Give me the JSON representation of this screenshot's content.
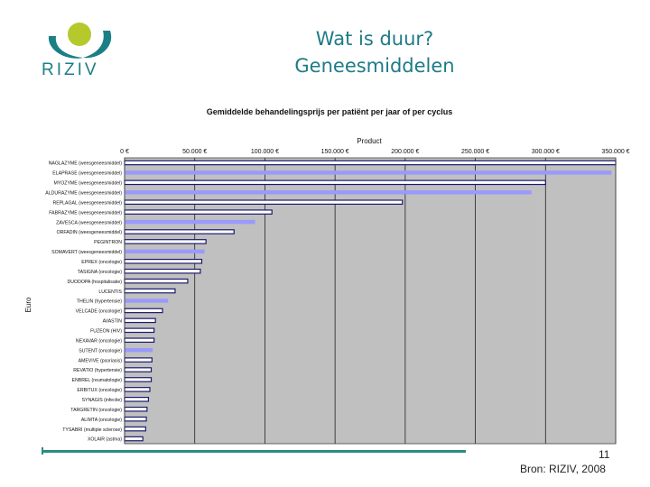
{
  "header": {
    "logo_text": "RIZIV",
    "title_line1": "Wat is duur?",
    "title_line2": "Geneesmiddelen"
  },
  "footer": {
    "page_number": "11",
    "source": "Bron: RIZIV, 2008"
  },
  "colors": {
    "title": "#1e7b86",
    "plot_bg": "#c0c0c0",
    "bar_dark_fill": "#ffffff",
    "bar_dark_edge": "#1a1a6e",
    "bar_light": "#9999ff",
    "logo_green": "#b5c92d",
    "logo_teal": "#1b7f86"
  },
  "chart_data": {
    "type": "bar",
    "orientation": "horizontal",
    "title": "Gemiddelde behandelingsprijs per patiënt per jaar of per cyclus",
    "axis_title_top": "Product",
    "ylabel": "Euro",
    "xlim": [
      0,
      350000
    ],
    "ticks": [
      0,
      50000,
      100000,
      150000,
      200000,
      250000,
      300000,
      350000
    ],
    "tick_labels": [
      "0 €",
      "50.000 €",
      "100.000 €",
      "150.000 €",
      "200.000 €",
      "250.000 €",
      "300.000 €",
      "350.000 €"
    ],
    "bars": [
      {
        "label": "NAGLAZYME (weesgeneesmiddel)",
        "value": 350000,
        "style": "dark"
      },
      {
        "label": "ELAPRASE (weesgeneesmiddel)",
        "value": 347000,
        "style": "light"
      },
      {
        "label": "MYOZYME (weesgeneesmiddel)",
        "value": 300000,
        "style": "dark"
      },
      {
        "label": "ALDURAZYME (weesgeneesmiddel)",
        "value": 290000,
        "style": "light"
      },
      {
        "label": "REPLAGAL (weesgeneesmiddel)",
        "value": 198000,
        "style": "dark"
      },
      {
        "label": "FABRAZYME (weesgeneesmiddel)",
        "value": 105000,
        "style": "dark"
      },
      {
        "label": "ZAVESCA (weesgeneesmiddel)",
        "value": 93000,
        "style": "light"
      },
      {
        "label": "ORFADIN (weesgeneesmiddel)",
        "value": 78000,
        "style": "dark"
      },
      {
        "label": "PEGINTRON",
        "value": 58000,
        "style": "dark"
      },
      {
        "label": "SOMAVERT (weesgeneesmiddel)",
        "value": 57000,
        "style": "light"
      },
      {
        "label": "EPREX (oncologie)",
        "value": 55000,
        "style": "dark"
      },
      {
        "label": "TASIGNA (oncologie)",
        "value": 54000,
        "style": "dark"
      },
      {
        "label": "DUODOPA (hospitalisatie)",
        "value": 45000,
        "style": "dark"
      },
      {
        "label": "LUCENTIS",
        "value": 36000,
        "style": "dark"
      },
      {
        "label": "THELIN (hypertensie)",
        "value": 31000,
        "style": "light"
      },
      {
        "label": "VELCADE (oncologie)",
        "value": 27000,
        "style": "dark"
      },
      {
        "label": "AVASTIN",
        "value": 22000,
        "style": "dark"
      },
      {
        "label": "FUZEON (HIV)",
        "value": 21000,
        "style": "dark"
      },
      {
        "label": "NEXAVAR (oncologie)",
        "value": 21000,
        "style": "dark"
      },
      {
        "label": "SUTENT (oncologie)",
        "value": 20000,
        "style": "light"
      },
      {
        "label": "AMEVIVE (psoriasis)",
        "value": 19500,
        "style": "dark"
      },
      {
        "label": "REVATIO (hypertensie)",
        "value": 19000,
        "style": "dark"
      },
      {
        "label": "ENBREL (reumatologie)",
        "value": 19000,
        "style": "dark"
      },
      {
        "label": "ERBITUX (oncologie)",
        "value": 18000,
        "style": "dark"
      },
      {
        "label": "SYNAGIS (infectie)",
        "value": 17000,
        "style": "dark"
      },
      {
        "label": "TARGRETIN (oncologie)",
        "value": 16000,
        "style": "dark"
      },
      {
        "label": "ALIMTA (oncologie)",
        "value": 15500,
        "style": "dark"
      },
      {
        "label": "TYSABRI (multiple sclerose)",
        "value": 15000,
        "style": "dark"
      },
      {
        "label": "XOLAIR (astma)",
        "value": 13000,
        "style": "dark"
      }
    ]
  }
}
